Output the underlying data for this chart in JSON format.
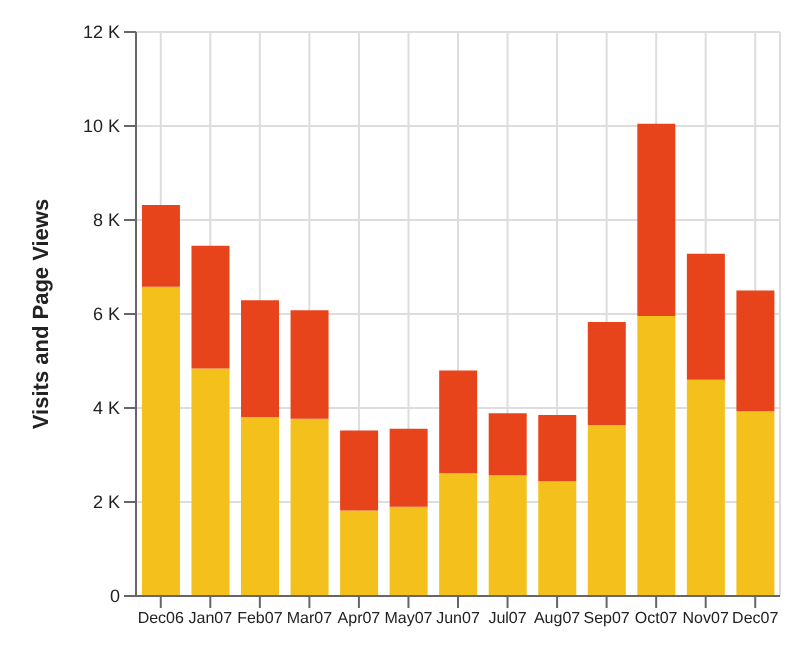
{
  "chart_data": {
    "type": "bar",
    "ylabel": "Visits and Page Views",
    "stacked": true,
    "grid": true,
    "categories": [
      "Dec06",
      "Jan07",
      "Feb07",
      "Mar07",
      "Apr07",
      "May07",
      "Jun07",
      "Jul07",
      "Aug07",
      "Sep07",
      "Oct07",
      "Nov07",
      "Dec07"
    ],
    "series": [
      {
        "color": "#f3c01c",
        "values": [
          6580,
          4840,
          3810,
          3770,
          1820,
          1900,
          2610,
          2570,
          2440,
          3640,
          5960,
          4600,
          3930
        ]
      },
      {
        "color": "#e8441c",
        "values": [
          1740,
          2610,
          2480,
          2310,
          1700,
          1660,
          2190,
          1320,
          1410,
          2190,
          4090,
          2680,
          2570
        ]
      }
    ],
    "ylim": [
      0,
      12000
    ],
    "yticks": [
      {
        "value": 0,
        "label": "0"
      },
      {
        "value": 2000,
        "label": "2 K"
      },
      {
        "value": 4000,
        "label": "4 K"
      },
      {
        "value": 6000,
        "label": "6 K"
      },
      {
        "value": 8000,
        "label": "8 K"
      },
      {
        "value": 10000,
        "label": "10 K"
      },
      {
        "value": 12000,
        "label": "12 K"
      }
    ]
  }
}
